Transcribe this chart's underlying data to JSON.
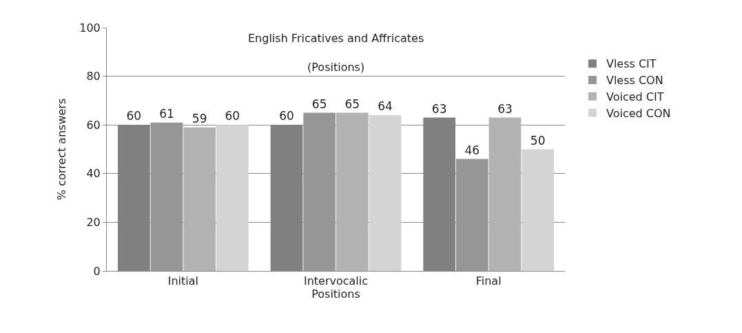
{
  "chart_data": {
    "type": "bar",
    "title": "English Fricatives and Affricates\n(Positions)",
    "xlabel": "Positions",
    "ylabel": "% correct answers",
    "categories": [
      "Initial",
      "Intervocalic",
      "Final"
    ],
    "series": [
      {
        "name": "Vless CIT",
        "color": "#808080",
        "values": [
          60,
          60,
          63
        ]
      },
      {
        "name": "Vless CON",
        "color": "#969696",
        "values": [
          61,
          65,
          46
        ]
      },
      {
        "name": "Voiced CIT",
        "color": "#b2b2b2",
        "values": [
          59,
          65,
          63
        ]
      },
      {
        "name": "Voiced CON",
        "color": "#d4d4d4",
        "values": [
          60,
          64,
          50
        ]
      }
    ],
    "ylim": [
      0,
      100
    ],
    "yticks": [
      0,
      20,
      40,
      60,
      80,
      100
    ],
    "grid": "y",
    "legend": "right",
    "data_labels": true
  }
}
